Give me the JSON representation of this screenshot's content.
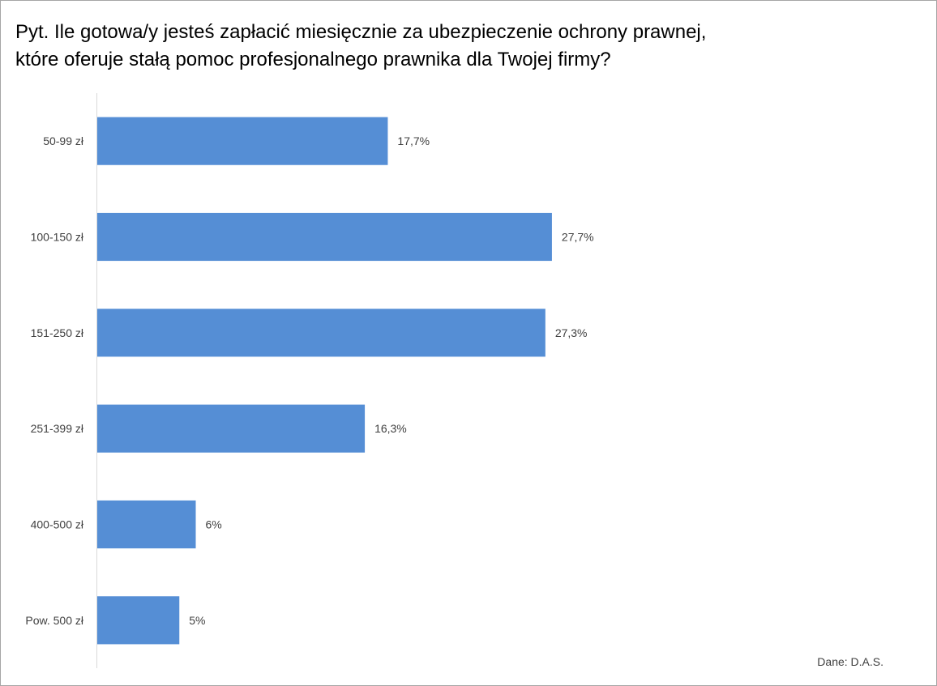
{
  "title_lines": [
    "Pyt. Ile gotowa/y jesteś zapłacić miesięcznie za ubezpieczenie ochrony prawnej,",
    "które oferuje stałą pomoc profesjonalnego prawnika dla Twojej firmy?"
  ],
  "source": "Dane: D.A.S.",
  "chart_data": {
    "type": "bar",
    "orientation": "horizontal",
    "title": "Pyt. Ile gotowa/y jesteś zapłacić miesięcznie za ubezpieczenie ochrony prawnej, które oferuje stałą pomoc profesjonalnego prawnika dla Twojej firmy?",
    "categories": [
      "50-99 zł",
      "100-150 zł",
      "151-250 zł",
      "251-399 zł",
      "400-500 zł",
      "Pow. 500 zł"
    ],
    "values": [
      17.7,
      27.7,
      27.3,
      16.3,
      6,
      5
    ],
    "data_labels": [
      "17,7%",
      "27,7%",
      "27,3%",
      "16,3%",
      "6%",
      "5%"
    ],
    "xlabel": "",
    "ylabel": "",
    "xlim": [
      0,
      50
    ],
    "grid": false,
    "legend": "none",
    "bar_color": "#558ed5",
    "axis_color": "#d9d9d9"
  }
}
